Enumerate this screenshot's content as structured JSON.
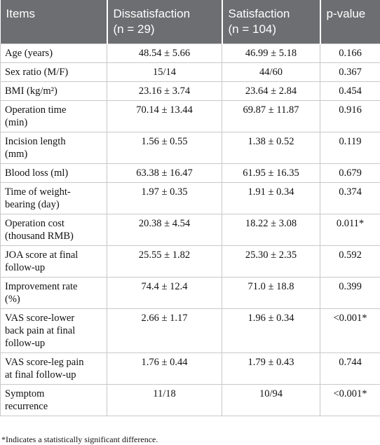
{
  "table": {
    "header": [
      [
        "Items"
      ],
      [
        "Dissatisfaction",
        "(n = 29)"
      ],
      [
        "Satisfaction",
        "(n = 104)"
      ],
      [
        "p-value"
      ]
    ],
    "rows": [
      [
        [
          "Age (years)"
        ],
        "48.54 ± 5.66",
        "46.99 ± 5.18",
        "0.166"
      ],
      [
        [
          "Sex ratio (M/F)"
        ],
        "15/14",
        "44/60",
        "0.367"
      ],
      [
        [
          "BMI (kg/m²)"
        ],
        "23.16 ± 3.74",
        "23.64 ± 2.84",
        "0.454"
      ],
      [
        [
          "Operation time",
          "(min)"
        ],
        "70.14 ± 13.44",
        "69.87 ± 11.87",
        "0.916"
      ],
      [
        [
          "Incision length",
          "(mm)"
        ],
        "1.56 ± 0.55",
        "1.38 ± 0.52",
        "0.119"
      ],
      [
        [
          "Blood loss (ml)"
        ],
        "63.38 ± 16.47",
        "61.95 ± 16.35",
        "0.679"
      ],
      [
        [
          "Time of weight-",
          "bearing (day)"
        ],
        "1.97 ± 0.35",
        "1.91 ± 0.34",
        "0.374"
      ],
      [
        [
          "Operation cost",
          "(thousand RMB)"
        ],
        "20.38 ± 4.54",
        "18.22 ± 3.08",
        "0.011*"
      ],
      [
        [
          "JOA score at final",
          "follow-up"
        ],
        "25.55 ± 1.82",
        "25.30 ± 2.35",
        "0.592"
      ],
      [
        [
          "Improvement rate",
          "(%)"
        ],
        "74.4 ± 12.4",
        "71.0 ± 18.8",
        "0.399"
      ],
      [
        [
          "VAS score-lower",
          "back pain at final",
          "follow-up"
        ],
        "2.66 ± 1.17",
        "1.96 ± 0.34",
        "<0.001*"
      ],
      [
        [
          "VAS score-leg pain",
          "at final follow-up"
        ],
        "1.76 ± 0.44",
        "1.79 ± 0.43",
        "0.744"
      ],
      [
        [
          "Symptom",
          "recurrence"
        ],
        "11/18",
        "10/94",
        "<0.001*"
      ]
    ],
    "footnote": "*Indicates a statistically significant difference."
  }
}
